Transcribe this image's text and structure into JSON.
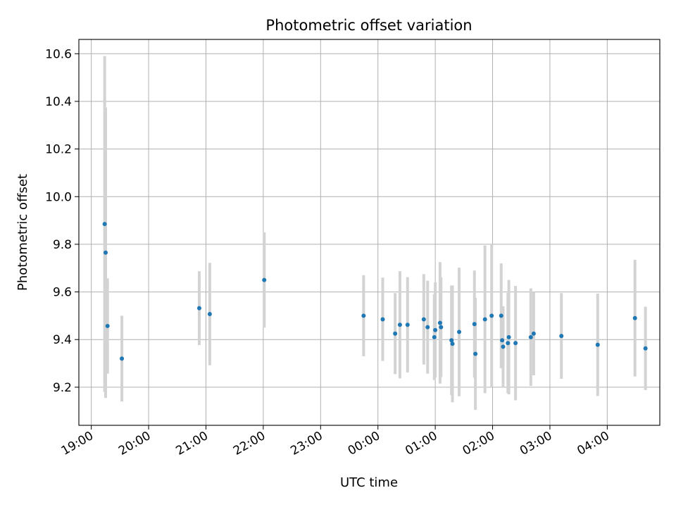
{
  "chart_data": {
    "type": "scatter",
    "title": "Photometric offset variation",
    "xlabel": "UTC time",
    "ylabel": "Photometric offset",
    "xlim": [
      "18:47",
      "04:55"
    ],
    "ylim": [
      9.04,
      10.66
    ],
    "grid": true,
    "x_ticks": [
      "19:00",
      "20:00",
      "21:00",
      "22:00",
      "23:00",
      "00:00",
      "01:00",
      "02:00",
      "03:00",
      "04:00"
    ],
    "y_ticks": [
      "9.2",
      "9.4",
      "9.6",
      "9.8",
      "10.0",
      "10.2",
      "10.4",
      "10.6"
    ],
    "colors": {
      "point": "#1f77b4",
      "errorbar": "#d3d3d3",
      "grid": "#b0b0b0"
    },
    "points": [
      {
        "x": "19:14",
        "y": 9.885,
        "err": 0.705
      },
      {
        "x": "19:15",
        "y": 9.765,
        "err": 0.61
      },
      {
        "x": "19:17",
        "y": 9.457,
        "err": 0.2
      },
      {
        "x": "19:32",
        "y": 9.32,
        "err": 0.18
      },
      {
        "x": "20:53",
        "y": 9.532,
        "err": 0.155
      },
      {
        "x": "21:04",
        "y": 9.507,
        "err": 0.215
      },
      {
        "x": "22:01",
        "y": 9.65,
        "err": 0.2
      },
      {
        "x": "23:45",
        "y": 9.5,
        "err": 0.17
      },
      {
        "x": "00:05",
        "y": 9.485,
        "err": 0.175
      },
      {
        "x": "00:18",
        "y": 9.425,
        "err": 0.17
      },
      {
        "x": "00:23",
        "y": 9.462,
        "err": 0.225
      },
      {
        "x": "00:31",
        "y": 9.462,
        "err": 0.2
      },
      {
        "x": "00:48",
        "y": 9.485,
        "err": 0.19
      },
      {
        "x": "00:52",
        "y": 9.452,
        "err": 0.195
      },
      {
        "x": "00:59",
        "y": 9.41,
        "err": 0.18
      },
      {
        "x": "01:00",
        "y": 9.44,
        "err": 0.2
      },
      {
        "x": "01:05",
        "y": 9.47,
        "err": 0.255
      },
      {
        "x": "01:06",
        "y": 9.452,
        "err": 0.21
      },
      {
        "x": "01:17",
        "y": 9.397,
        "err": 0.23
      },
      {
        "x": "01:18",
        "y": 9.382,
        "err": 0.245
      },
      {
        "x": "01:25",
        "y": 9.432,
        "err": 0.27
      },
      {
        "x": "01:41",
        "y": 9.465,
        "err": 0.225
      },
      {
        "x": "01:42",
        "y": 9.34,
        "err": 0.235
      },
      {
        "x": "01:52",
        "y": 9.485,
        "err": 0.31
      },
      {
        "x": "01:59",
        "y": 9.5,
        "err": 0.3
      },
      {
        "x": "02:09",
        "y": 9.5,
        "err": 0.22
      },
      {
        "x": "02:10",
        "y": 9.397,
        "err": 0.115
      },
      {
        "x": "02:11",
        "y": 9.37,
        "err": 0.17
      },
      {
        "x": "02:16",
        "y": 9.385,
        "err": 0.21
      },
      {
        "x": "02:17",
        "y": 9.41,
        "err": 0.24
      },
      {
        "x": "02:24",
        "y": 9.385,
        "err": 0.24
      },
      {
        "x": "02:40",
        "y": 9.41,
        "err": 0.205
      },
      {
        "x": "02:43",
        "y": 9.425,
        "err": 0.175
      },
      {
        "x": "03:12",
        "y": 9.415,
        "err": 0.18
      },
      {
        "x": "03:50",
        "y": 9.378,
        "err": 0.215
      },
      {
        "x": "04:29",
        "y": 9.49,
        "err": 0.245
      },
      {
        "x": "04:40",
        "y": 9.363,
        "err": 0.175
      }
    ]
  }
}
